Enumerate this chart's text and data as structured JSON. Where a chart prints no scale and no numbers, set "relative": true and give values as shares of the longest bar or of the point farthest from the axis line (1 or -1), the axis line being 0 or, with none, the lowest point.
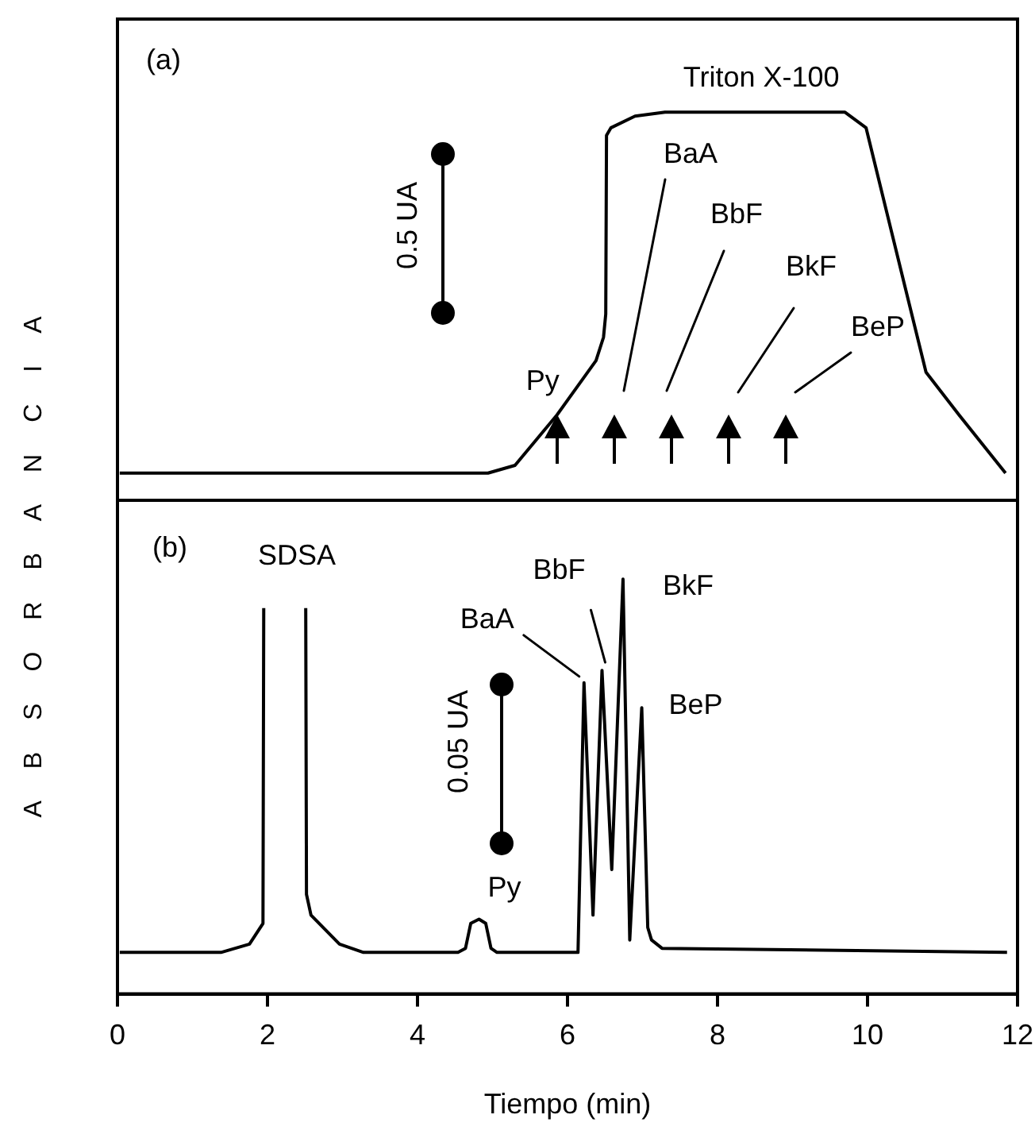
{
  "chart_data": [
    {
      "type": "line",
      "ylabel": "ABSORBANCIA",
      "relative": true,
      "xlim": [
        0,
        12
      ],
      "xticks": [
        0,
        2,
        4,
        6,
        8,
        10,
        12
      ],
      "tick_labels": false,
      "marker": "none",
      "line_style": "solid",
      "color": "#000000",
      "x": [
        0.03,
        4.94,
        5.3,
        5.86,
        6.38,
        6.48,
        6.51,
        6.52,
        6.58,
        6.9,
        7.3,
        9.7,
        9.98,
        10.5,
        10.78,
        11.22,
        11.84
      ],
      "values": [
        0.07,
        0.07,
        0.09,
        0.22,
        0.36,
        0.42,
        0.48,
        0.94,
        0.96,
        0.99,
        1,
        1,
        0.96,
        0.55,
        0.33,
        0.22,
        0.07
      ],
      "annotations": [
        "(a)",
        "0.5 UA",
        {
          "text": "Triton X-100",
          "x": 8.5,
          "y": 1
        },
        {
          "text": "Py",
          "x": 5.86,
          "y": 0.22
        },
        "BaA",
        "BbF",
        "BkF",
        "BeP"
      ]
    },
    {
      "type": "line",
      "xlabel": "Tiempo (min)",
      "relative": true,
      "xlim": [
        0,
        12
      ],
      "xticks": [
        0,
        2,
        4,
        6,
        8,
        10,
        12
      ],
      "marker": "none",
      "line_style": "solid",
      "color": "#000000",
      "x": [
        0.03,
        1.38,
        1.76,
        1.94,
        1.95,
        2.23,
        2.51,
        2.52,
        2.58,
        2.96,
        3.28,
        4.54,
        4.64,
        4.71,
        4.82,
        4.91,
        4.98,
        5.06,
        6.14,
        6.22,
        6.34,
        6.46,
        6.59,
        6.74,
        6.83,
        6.99,
        7.07,
        7.12,
        7.26,
        11.86
      ],
      "values": [
        0.1,
        0.1,
        0.12,
        0.17,
        0.93,
        null,
        0.93,
        0.24,
        0.19,
        0.12,
        0.1,
        0.1,
        0.11,
        0.17,
        0.18,
        0.17,
        0.11,
        0.1,
        0.1,
        0.75,
        0.19,
        0.78,
        0.3,
        1,
        0.13,
        0.69,
        0.16,
        0.13,
        0.11,
        0.1
      ],
      "annotations": [
        "(b)",
        "0.05 UA",
        "SDSA",
        {
          "text": "Py",
          "x": 4.82,
          "y": 0.18
        },
        {
          "text": "BaA",
          "x": 6.22,
          "y": 0.75
        },
        {
          "text": "BbF",
          "x": 6.46,
          "y": 0.78
        },
        {
          "text": "BkF",
          "x": 6.74,
          "y": 1
        },
        {
          "text": "BeP",
          "x": 6.99,
          "y": 0.69
        }
      ]
    }
  ]
}
